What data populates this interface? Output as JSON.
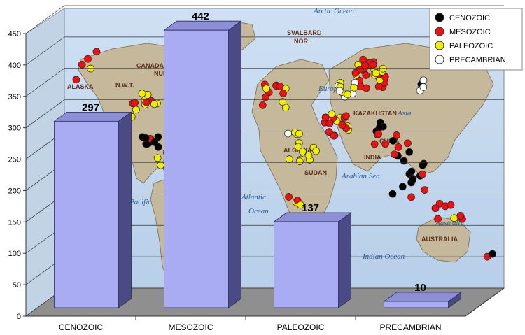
{
  "chart_data": {
    "type": "bar",
    "categories": [
      "CENOZOIC",
      "MESOZOIC",
      "PALEOZOIC",
      "PRECAMBRIAN"
    ],
    "values": [
      297,
      442,
      137,
      10
    ],
    "data_labels": [
      "297",
      "442",
      "137",
      "10"
    ],
    "ylim": [
      0,
      450
    ],
    "yticks": [
      "0",
      "50",
      "100",
      "150",
      "200",
      "250",
      "300",
      "350",
      "400",
      "450"
    ],
    "grid": true,
    "legend": {
      "placement": "top-right",
      "entries": [
        {
          "name": "CENOZOIC",
          "color": "#000000"
        },
        {
          "name": "MESOZOIC",
          "color": "#ee1111"
        },
        {
          "name": "PALEOZOIC",
          "color": "#f2ee00"
        },
        {
          "name": "PRECAMBRIAN",
          "color": "#ffffff"
        }
      ]
    },
    "bar_color": "#a9abf3",
    "background": "world map"
  },
  "map_labels": [
    "Arctic Ocean",
    "CANADA",
    "ALASKA",
    "N.W.T.",
    "NUN.",
    "SVALBARD",
    "NOR.",
    "ALGERIA",
    "KAZAKHSTAN",
    "CHINA",
    "INDIA",
    "SUDAN",
    "AUSTRALIA",
    "Atlantic",
    "Ocean",
    "Pacific",
    "Arabian Sea",
    "Indian Ocean",
    "Europe",
    "Asia",
    "Australia"
  ]
}
